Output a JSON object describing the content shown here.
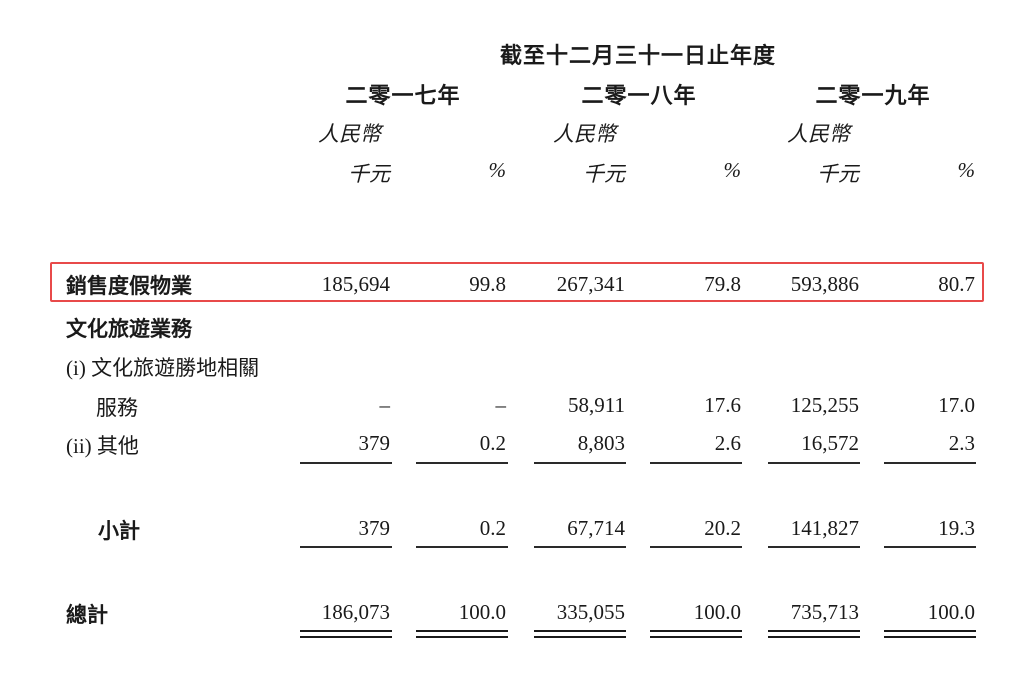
{
  "header": {
    "period": "截至十二月三十一日止年度",
    "years": [
      "二零一七年",
      "二零一八年",
      "二零一九年"
    ],
    "currency": "人民幣",
    "unit_amount": "千元",
    "unit_pct": "%"
  },
  "rows": {
    "sales": {
      "label": "銷售度假物業",
      "values": [
        "185,694",
        "99.8",
        "267,341",
        "79.8",
        "593,886",
        "80.7"
      ]
    },
    "tourism_header": {
      "label": "文化旅遊業務"
    },
    "services": {
      "label_line1": "(i) 文化旅遊勝地相關",
      "label_line2": "服務",
      "values": [
        "–",
        "–",
        "58,911",
        "17.6",
        "125,255",
        "17.0"
      ]
    },
    "others": {
      "label": "(ii) 其他",
      "values": [
        "379",
        "0.2",
        "8,803",
        "2.6",
        "16,572",
        "2.3"
      ]
    },
    "subtotal": {
      "label": "小計",
      "values": [
        "379",
        "0.2",
        "67,714",
        "20.2",
        "141,827",
        "19.3"
      ]
    },
    "total": {
      "label": "總計",
      "values": [
        "186,073",
        "100.0",
        "335,055",
        "100.0",
        "735,713",
        "100.0"
      ]
    }
  }
}
